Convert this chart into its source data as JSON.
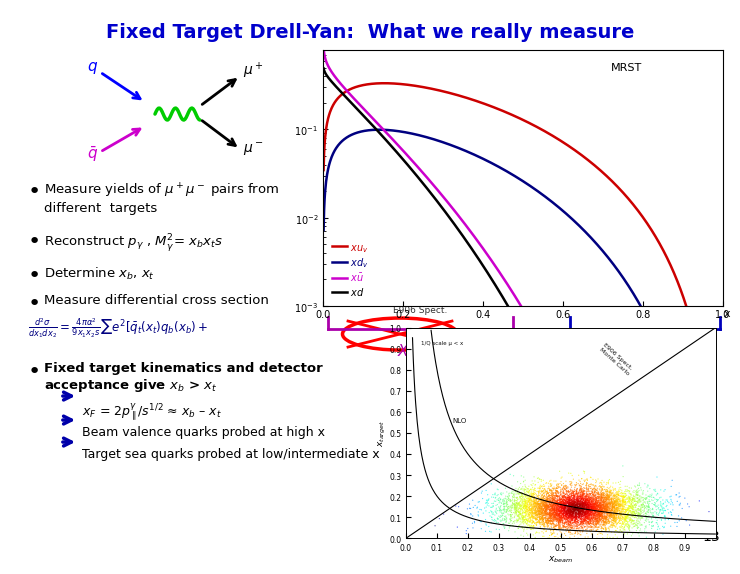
{
  "title": "Fixed Target Drell-Yan:  What we really measure",
  "title_color": "#0000CC",
  "title_fontsize": 14,
  "background_color": "#FFFFFF",
  "slide_number": "13",
  "bullet_color": "#000080",
  "bullet_points": [
    "Measure yields of $\\mu^+\\mu^-$ pairs from\ndifferent  targets",
    "Reconstruct $p_\\gamma$ , $M^2_\\gamma$= $x_b x_t s$",
    "Determine $x_b$, $x_t$",
    "Measure differential cross section"
  ],
  "bullet2": "Fixed target kinematics and detector\nacceptance give $x_b$ > $x_t$",
  "sub_bullets": [
    "$x_F$ = 2$p_{\\parallel}^\\gamma$/$s^{1/2}$ ≈ $x_b$ – $x_t$",
    "Beam valence quarks probed at high x",
    "Target sea quarks probed at low/intermediate x"
  ],
  "xtarget_label": "$X_{target}$",
  "xbeam_label": "$X_{beam}$",
  "mrst_label": "MRST",
  "legend_items": [
    "$xu_v$",
    "$xd_v$",
    "$x\\bar{u}$",
    "$xd$"
  ],
  "legend_colors": [
    "#CC0000",
    "#000080",
    "#CC00CC",
    "#000000"
  ],
  "arrow_color": "#0000AA",
  "xtarget_color": "#AA00AA",
  "xbeam_color": "#0000BB"
}
